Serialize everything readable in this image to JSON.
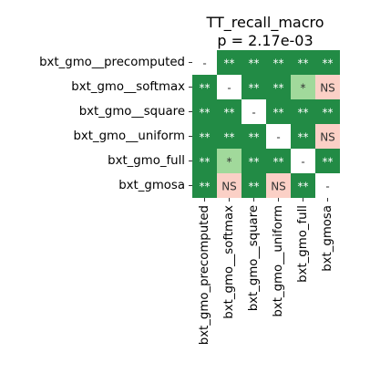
{
  "chart_data": {
    "type": "heatmap",
    "title": "TT_recall_macro",
    "subtitle": "p = 2.17e-03",
    "row_labels": [
      "bxt_gmo__precomputed",
      "bxt_gmo__softmax",
      "bxt_gmo__square",
      "bxt_gmo__uniform",
      "bxt_gmo_full",
      "bxt_gmosa"
    ],
    "col_labels": [
      "bxt_gmo_precomputed",
      "bxt_gmo__softmax",
      "bxt_gmo__square",
      "bxt_gmo__uniform",
      "bxt_gmo_full",
      "bxt_gmosa"
    ],
    "cells": [
      [
        "-",
        "**",
        "**",
        "**",
        "**",
        "**"
      ],
      [
        "**",
        "-",
        "**",
        "**",
        "*",
        "NS"
      ],
      [
        "**",
        "**",
        "-",
        "**",
        "**",
        "**"
      ],
      [
        "**",
        "**",
        "**",
        "-",
        "**",
        "NS"
      ],
      [
        "**",
        "*",
        "**",
        "**",
        "-",
        "**"
      ],
      [
        "**",
        "NS",
        "**",
        "NS",
        "**",
        "-"
      ]
    ],
    "colors": {
      "**": "#228b45",
      "*": "#a1d99b",
      "NS": "#fbd0c6",
      "-": "#ffffff"
    },
    "text_colors": {
      "**": "#ffffff",
      "*": "#333333",
      "NS": "#333333",
      "-": "#333333"
    }
  }
}
